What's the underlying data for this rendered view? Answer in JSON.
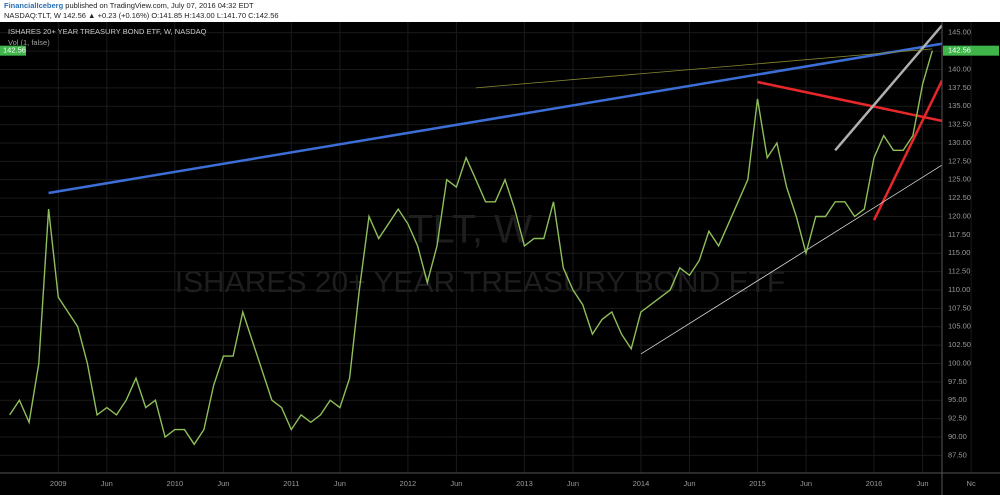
{
  "header": {
    "author": "FinancialIceberg",
    "published": "published on TradingView.com, July 07, 2016 04:32 EDT",
    "quote": "NASDAQ:TLT, W 142.56 ▲ +0.23 (+0.16%) O:141.85 H:143.00 L:141.70 C:142.56"
  },
  "chart_data": {
    "type": "line",
    "title": "ISHARES 20+ YEAR TREASURY BOND ETF, W, NASDAQ",
    "volume_label": "Vol (1, false)",
    "watermark_symbol": "TLT, W",
    "watermark_name": "ISHARES 20+ YEAR TREASURY BOND ETF",
    "current_price": {
      "value": 142.56,
      "label": "142.56",
      "color": "#3fb54a"
    },
    "x": [
      "2008-08",
      "2008-09",
      "2008-10",
      "2008-11",
      "2008-12",
      "2009-01",
      "2009-02",
      "2009-03",
      "2009-04",
      "2009-05",
      "2009-06",
      "2009-07",
      "2009-08",
      "2009-09",
      "2009-10",
      "2009-11",
      "2009-12",
      "2010-01",
      "2010-02",
      "2010-03",
      "2010-04",
      "2010-05",
      "2010-06",
      "2010-07",
      "2010-08",
      "2010-09",
      "2010-10",
      "2010-11",
      "2010-12",
      "2011-01",
      "2011-02",
      "2011-03",
      "2011-04",
      "2011-05",
      "2011-06",
      "2011-07",
      "2011-08",
      "2011-09",
      "2011-10",
      "2011-11",
      "2011-12",
      "2012-01",
      "2012-02",
      "2012-03",
      "2012-04",
      "2012-05",
      "2012-06",
      "2012-07",
      "2012-08",
      "2012-09",
      "2012-10",
      "2012-11",
      "2012-12",
      "2013-01",
      "2013-02",
      "2013-03",
      "2013-04",
      "2013-05",
      "2013-06",
      "2013-07",
      "2013-08",
      "2013-09",
      "2013-10",
      "2013-11",
      "2013-12",
      "2014-01",
      "2014-02",
      "2014-03",
      "2014-04",
      "2014-05",
      "2014-06",
      "2014-07",
      "2014-08",
      "2014-09",
      "2014-10",
      "2014-11",
      "2014-12",
      "2015-01",
      "2015-02",
      "2015-03",
      "2015-04",
      "2015-05",
      "2015-06",
      "2015-07",
      "2015-08",
      "2015-09",
      "2015-10",
      "2015-11",
      "2015-12",
      "2016-01",
      "2016-02",
      "2016-03",
      "2016-04",
      "2016-05",
      "2016-06",
      "2016-07"
    ],
    "series": [
      {
        "name": "TLT",
        "color": "#8fbf5a",
        "values": [
          93,
          95,
          92,
          100,
          121,
          109,
          107,
          105,
          100,
          93,
          94,
          93,
          95,
          98,
          94,
          95,
          90,
          91,
          91,
          89,
          91,
          97,
          101,
          101,
          107,
          103,
          99,
          95,
          94,
          91,
          93,
          92,
          93,
          95,
          94,
          98,
          110,
          120,
          117,
          119,
          121,
          119,
          116,
          111,
          116,
          125,
          124,
          128,
          125,
          122,
          122,
          125,
          121,
          116,
          117,
          117,
          122,
          113,
          110,
          108,
          104,
          106,
          107,
          104,
          102,
          107,
          108,
          109,
          110,
          113,
          112,
          114,
          118,
          116,
          119,
          122,
          125,
          136,
          128,
          130,
          124,
          120,
          115,
          120,
          120,
          122,
          122,
          120,
          121,
          128,
          131,
          129,
          129,
          131,
          138,
          142.56
        ]
      }
    ],
    "drawings": [
      {
        "color": "#3b6fd6",
        "points": [
          {
            "x": "2008-12",
            "y": 123.2
          },
          {
            "x": "2016-08",
            "y": 143.5
          }
        ]
      },
      {
        "color": "#e8272a",
        "points": [
          {
            "x": "2015-01",
            "y": 138.3
          },
          {
            "x": "2016-08",
            "y": 133
          }
        ]
      },
      {
        "color": "#e8272a",
        "points": [
          {
            "x": "2016-01",
            "y": 119.5
          },
          {
            "x": "2016-08",
            "y": 138.5
          }
        ]
      },
      {
        "color": "#b0b0b0",
        "points": [
          {
            "x": "2015-09",
            "y": 129
          },
          {
            "x": "2016-08",
            "y": 146
          }
        ]
      },
      {
        "color": "#d8d8d8",
        "points": [
          {
            "x": "2014-01",
            "y": 101.3
          },
          {
            "x": "2016-08",
            "y": 127
          }
        ]
      },
      {
        "color": "#8a8a30",
        "points": [
          {
            "x": "2012-08",
            "y": 137.5
          },
          {
            "x": "2016-07",
            "y": 142.8
          }
        ]
      }
    ],
    "xlim": [
      "2008-07",
      "2016-08"
    ],
    "ylim": [
      85.1,
      146.46
    ],
    "grid": true,
    "xticks": [
      {
        "value": "2009-01",
        "label": "2009"
      },
      {
        "value": "2009-06",
        "label": "Jun"
      },
      {
        "value": "2010-01",
        "label": "2010"
      },
      {
        "value": "2010-06",
        "label": "Jun"
      },
      {
        "value": "2011-01",
        "label": "2011"
      },
      {
        "value": "2011-06",
        "label": "Jun"
      },
      {
        "value": "2012-01",
        "label": "2012"
      },
      {
        "value": "2012-06",
        "label": "Jun"
      },
      {
        "value": "2013-01",
        "label": "2013"
      },
      {
        "value": "2013-06",
        "label": "Jun"
      },
      {
        "value": "2014-01",
        "label": "2014"
      },
      {
        "value": "2014-06",
        "label": "Jun"
      },
      {
        "value": "2015-01",
        "label": "2015"
      },
      {
        "value": "2015-06",
        "label": "Jun"
      },
      {
        "value": "2016-01",
        "label": "2016"
      },
      {
        "value": "2016-06",
        "label": "Jun"
      },
      {
        "value": "2016-11",
        "label": "Nc"
      }
    ],
    "yticks": [
      {
        "value": 87.5,
        "label": "87.50"
      },
      {
        "value": 90,
        "label": "90.00"
      },
      {
        "value": 92.5,
        "label": "92.50"
      },
      {
        "value": 95,
        "label": "95.00"
      },
      {
        "value": 97.5,
        "label": "97.50"
      },
      {
        "value": 100,
        "label": "100.00"
      },
      {
        "value": 102.5,
        "label": "102.50"
      },
      {
        "value": 105,
        "label": "105.00"
      },
      {
        "value": 107.5,
        "label": "107.50"
      },
      {
        "value": 110,
        "label": "110.00"
      },
      {
        "value": 112.5,
        "label": "112.50"
      },
      {
        "value": 115,
        "label": "115.00"
      },
      {
        "value": 117.5,
        "label": "117.50"
      },
      {
        "value": 120,
        "label": "120.00"
      },
      {
        "value": 122.5,
        "label": "122.50"
      },
      {
        "value": 125,
        "label": "125.00"
      },
      {
        "value": 127.5,
        "label": "127.50"
      },
      {
        "value": 130,
        "label": "130.00"
      },
      {
        "value": 132.5,
        "label": "132.50"
      },
      {
        "value": 135,
        "label": "135.00"
      },
      {
        "value": 137.5,
        "label": "137.50"
      },
      {
        "value": 140,
        "label": "140.00"
      },
      {
        "value": 142.5,
        "label": "142.50"
      },
      {
        "value": 145,
        "label": "145.00"
      }
    ]
  }
}
